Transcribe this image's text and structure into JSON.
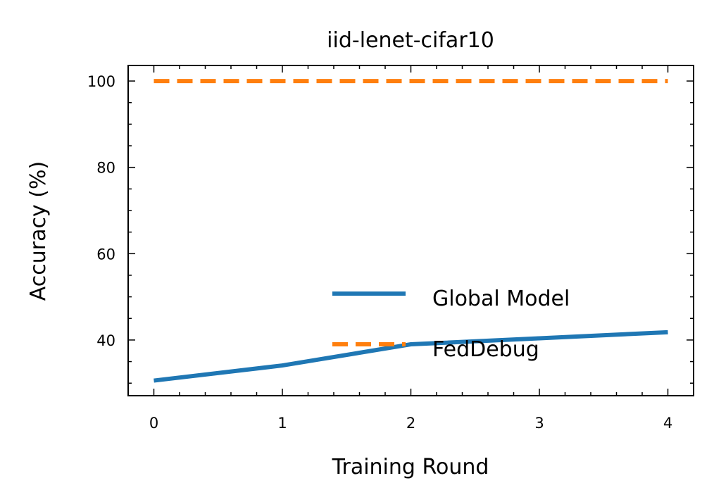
{
  "chart_data": {
    "type": "line",
    "title": "iid-lenet-cifar10",
    "xlabel": "Training Round",
    "ylabel": "Accuracy (%)",
    "x": [
      0,
      1,
      2,
      3,
      4
    ],
    "xlim": [
      -0.2,
      4.2
    ],
    "ylim": [
      27.1,
      103.6
    ],
    "xticks": [
      "0",
      "1",
      "2",
      "3",
      "4"
    ],
    "yticks": [
      "40",
      "60",
      "80",
      "100"
    ],
    "grid": false,
    "legend_position": "lower-right",
    "series": [
      {
        "name": "Global Model",
        "values": [
          30.6,
          34.1,
          39.0,
          40.4,
          41.8
        ],
        "color": "#1f77b4",
        "style": "solid"
      },
      {
        "name": "FedDebug",
        "values": [
          100,
          100,
          100,
          100,
          100
        ],
        "color": "#ff7f0e",
        "style": "dashed"
      }
    ]
  }
}
